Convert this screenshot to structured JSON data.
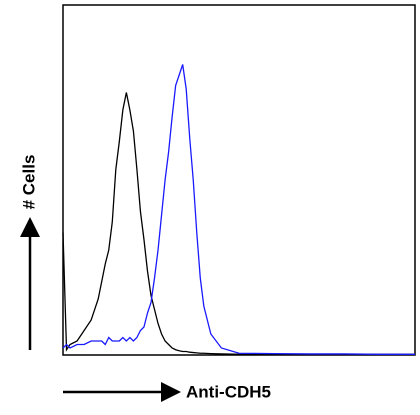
{
  "chart_data": {
    "type": "line",
    "y_label": "# Cells",
    "x_label": "Anti-CDH5",
    "x": [
      0,
      1,
      2,
      4,
      6,
      8,
      10,
      11,
      12,
      13,
      14,
      15,
      16,
      17,
      18,
      19,
      20,
      21,
      22,
      23,
      24,
      25,
      26,
      27,
      28,
      29,
      30,
      31,
      32,
      33,
      34,
      35,
      36,
      37,
      38,
      39,
      40,
      42,
      45,
      50,
      60,
      70,
      80,
      90,
      100
    ],
    "xlim": [
      0,
      100
    ],
    "ylim": [
      0,
      100
    ],
    "series": [
      {
        "color": "#000000",
        "values": [
          35,
          1.5,
          3,
          4,
          7,
          10,
          16,
          21,
          26,
          30,
          38,
          53,
          61,
          70,
          75,
          70,
          64,
          53,
          41,
          33,
          24,
          17,
          13,
          9,
          6,
          4,
          3,
          2,
          1.5,
          1.2,
          1,
          1,
          0.8,
          0.7,
          0.6,
          0.5,
          0.5,
          0.4,
          0.3,
          0.2,
          0.2,
          0.2,
          0.2,
          0.2,
          0.2
        ]
      },
      {
        "color": "#1a1aff",
        "values": [
          2,
          3,
          2,
          3,
          3,
          4,
          4,
          4,
          3,
          5,
          4,
          4,
          4,
          5,
          4,
          5,
          4,
          5,
          7,
          8,
          12,
          15,
          22,
          30,
          40,
          50,
          58,
          68,
          77,
          80,
          83,
          76,
          62,
          50,
          35,
          22,
          14,
          6,
          2,
          0.5,
          0.4,
          0.3,
          0.3,
          0.2,
          0.2
        ]
      }
    ]
  }
}
